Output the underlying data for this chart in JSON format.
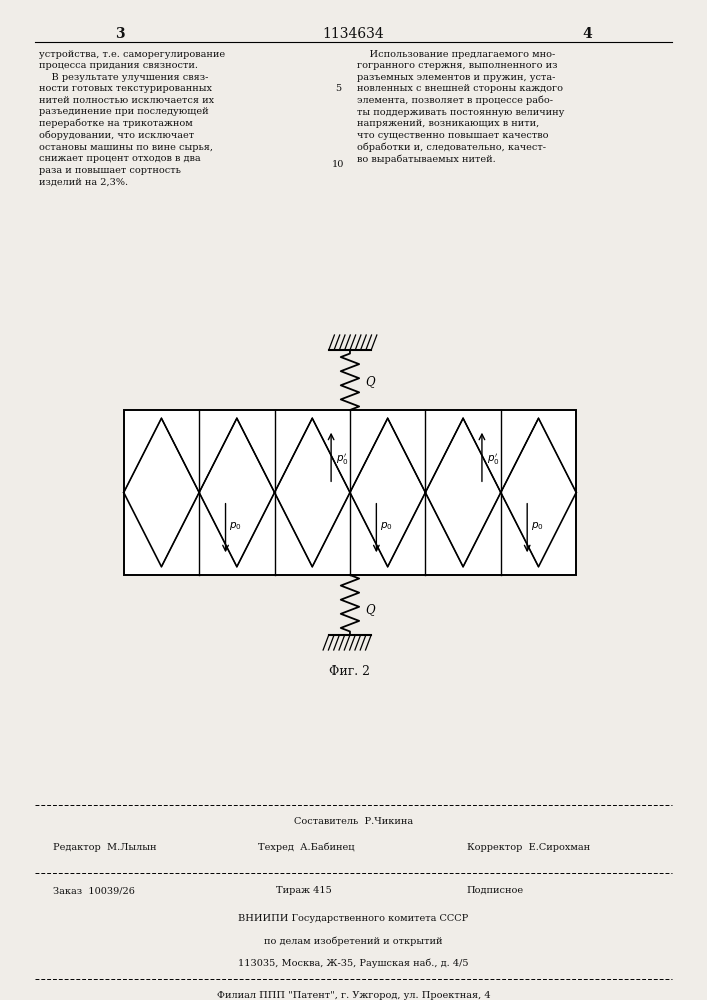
{
  "page_width": 7.07,
  "page_height": 10.0,
  "bg_color": "#f0ede8",
  "text_color": "#111111",
  "header": {
    "left_page_num": "3",
    "center_patent": "1134634",
    "right_page_num": "4"
  },
  "left_col_text": "устройства, т.е. саморегулирование\nпроцесса придания связности.\n    В результате улучшения связ-\nности готовых текстурированных\nнитей полностью исключается их\nразъединение при последующей\nпереработке на трикотажном\nоборудовании, что исключает\nостановы машины по вине сырья,\nснижает процент отходов в два\nраза и повышает сортность\nизделий на 2,3%.",
  "right_col_text": "    Использование предлагаемого мно-\nгогранного стержня, выполненного из\nразъемных элементов и пружин, уста-\nновленных с внешней стороны каждого\nэлемента, позволяет в процессе рабо-\nты поддерживать постоянную величину\nнапряжений, возникающих в нити,\nчто существенно повышает качество\nобработки и, следовательно, качест-\nво вырабатываемых нитей.",
  "fig_label": "Φиг. 2",
  "footer": {
    "composer_label": "Составитель  Р.Чикина",
    "editor_label": "Редактор  М.Лылын",
    "tech_label": "Техред  А.Бабинец",
    "corrector_label": "Корректор  Е.Сирохман",
    "order_label": "Заказ  10039/26",
    "tirazh_label": "Тираж 415",
    "podpisnoe_label": "Подписное",
    "vnipi_line1": "ВНИИПИ Государственного комитета СССР",
    "vnipi_line2": "по делам изобретений и открытий",
    "vnipi_line3": "113035, Москва, Ж-35, Раушская наб., д. 4/5",
    "filial_line": "Филиал ППП \"Патент\", г. Ужгород, ул. Проектная, 4"
  }
}
